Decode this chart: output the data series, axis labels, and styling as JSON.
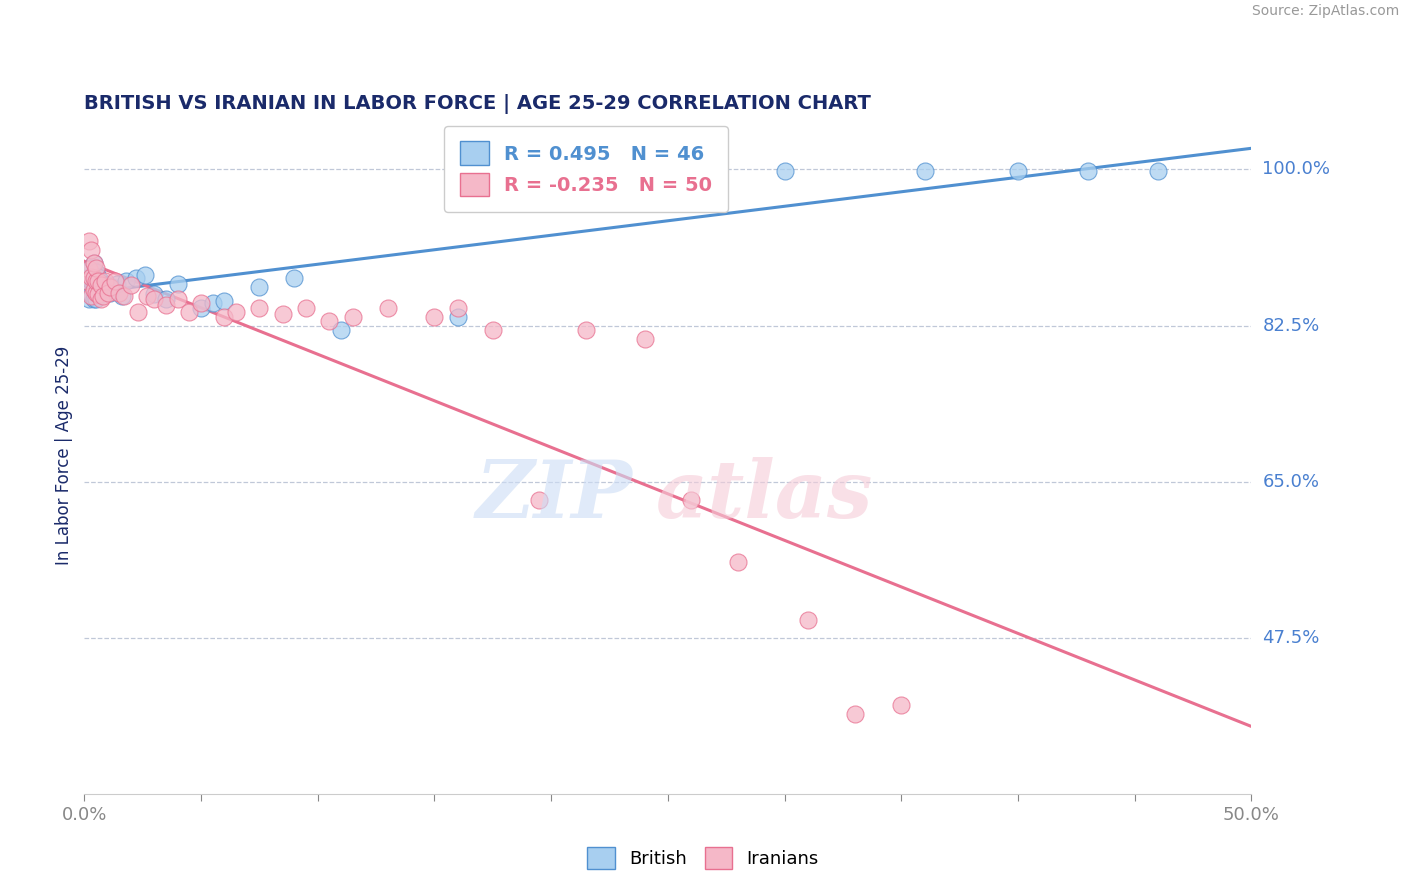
{
  "title": "BRITISH VS IRANIAN IN LABOR FORCE | AGE 25-29 CORRELATION CHART",
  "source": "Source: ZipAtlas.com",
  "ylabel": "In Labor Force | Age 25-29",
  "xlim": [
    0.0,
    0.5
  ],
  "ylim": [
    0.3,
    1.06
  ],
  "xticks": [
    0.0,
    0.05,
    0.1,
    0.15,
    0.2,
    0.25,
    0.3,
    0.35,
    0.4,
    0.45,
    0.5
  ],
  "xticklabels": [
    "0.0%",
    "",
    "",
    "",
    "",
    "",
    "",
    "",
    "",
    "",
    "50.0%"
  ],
  "ytick_positions": [
    1.0,
    0.825,
    0.65,
    0.475
  ],
  "ytick_labels": [
    "100.0%",
    "82.5%",
    "65.0%",
    "47.5%"
  ],
  "british_color": "#a8cff0",
  "iranian_color": "#f5b8c8",
  "british_line_color": "#5090d0",
  "iranian_line_color": "#e87090",
  "legend_british_R": 0.495,
  "legend_british_N": 46,
  "legend_iranian_R": -0.235,
  "legend_iranian_N": 50,
  "british_x": [
    0.001,
    0.002,
    0.002,
    0.003,
    0.003,
    0.003,
    0.004,
    0.004,
    0.004,
    0.004,
    0.005,
    0.005,
    0.005,
    0.005,
    0.006,
    0.006,
    0.006,
    0.007,
    0.007,
    0.008,
    0.008,
    0.009,
    0.01,
    0.011,
    0.012,
    0.014,
    0.016,
    0.018,
    0.022,
    0.026,
    0.03,
    0.035,
    0.04,
    0.05,
    0.055,
    0.06,
    0.075,
    0.09,
    0.11,
    0.16,
    0.26,
    0.3,
    0.36,
    0.4,
    0.43,
    0.46
  ],
  "british_y": [
    0.87,
    0.855,
    0.88,
    0.86,
    0.875,
    0.89,
    0.855,
    0.87,
    0.88,
    0.895,
    0.855,
    0.865,
    0.875,
    0.885,
    0.86,
    0.87,
    0.88,
    0.862,
    0.875,
    0.86,
    0.872,
    0.865,
    0.87,
    0.862,
    0.868,
    0.872,
    0.858,
    0.875,
    0.878,
    0.882,
    0.86,
    0.855,
    0.872,
    0.845,
    0.85,
    0.852,
    0.868,
    0.878,
    0.82,
    0.835,
    0.998,
    0.998,
    0.998,
    0.998,
    0.998,
    0.998
  ],
  "iranian_x": [
    0.001,
    0.002,
    0.002,
    0.003,
    0.003,
    0.003,
    0.004,
    0.004,
    0.004,
    0.005,
    0.005,
    0.005,
    0.006,
    0.006,
    0.007,
    0.007,
    0.008,
    0.009,
    0.01,
    0.011,
    0.013,
    0.015,
    0.017,
    0.02,
    0.023,
    0.027,
    0.03,
    0.035,
    0.04,
    0.045,
    0.05,
    0.06,
    0.065,
    0.075,
    0.085,
    0.095,
    0.105,
    0.115,
    0.13,
    0.15,
    0.16,
    0.175,
    0.195,
    0.215,
    0.24,
    0.26,
    0.28,
    0.31,
    0.33,
    0.35
  ],
  "iranian_y": [
    0.875,
    0.888,
    0.92,
    0.858,
    0.88,
    0.91,
    0.865,
    0.878,
    0.895,
    0.862,
    0.875,
    0.89,
    0.86,
    0.875,
    0.855,
    0.87,
    0.858,
    0.875,
    0.862,
    0.868,
    0.875,
    0.862,
    0.858,
    0.87,
    0.84,
    0.858,
    0.855,
    0.848,
    0.855,
    0.84,
    0.85,
    0.835,
    0.84,
    0.845,
    0.838,
    0.845,
    0.83,
    0.835,
    0.845,
    0.835,
    0.845,
    0.82,
    0.63,
    0.82,
    0.81,
    0.63,
    0.56,
    0.495,
    0.39,
    0.4
  ],
  "background_color": "#ffffff",
  "grid_color": "#c0c8d8",
  "title_color": "#1a2a6a",
  "axis_label_color": "#1a2a6a",
  "tick_color": "#4a80d0"
}
